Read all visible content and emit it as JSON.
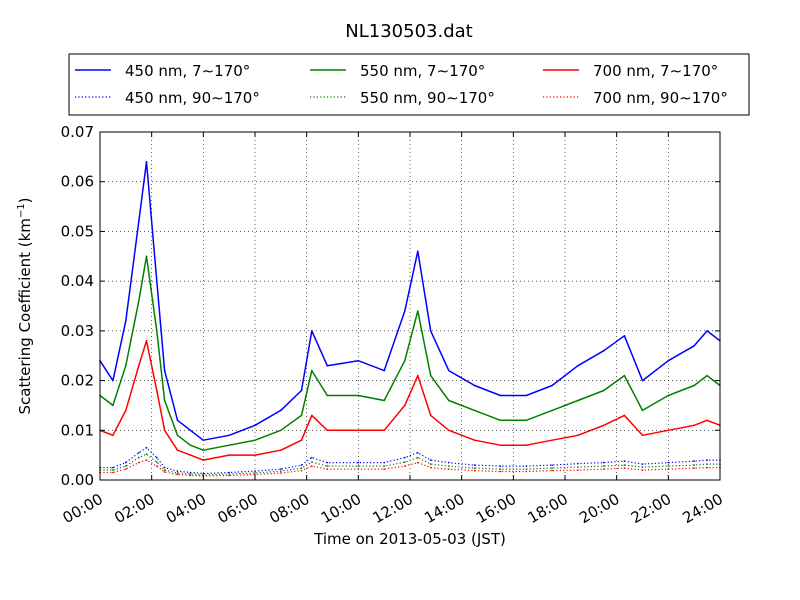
{
  "chart_data": {
    "type": "line",
    "title": "NL130503.dat",
    "xlabel": "Time on 2013-05-03 (JST)",
    "ylabel": "Scattering Coefficient (km",
    "ylabel_superscript": "−1",
    "ylabel_close": ")",
    "x_unit": "hours",
    "xlim": [
      0,
      24
    ],
    "ylim": [
      0,
      0.07
    ],
    "x_tick_values": [
      0,
      2,
      4,
      6,
      8,
      10,
      12,
      14,
      16,
      18,
      20,
      22,
      24
    ],
    "x_tick_labels": [
      "00:00",
      "02:00",
      "04:00",
      "06:00",
      "08:00",
      "10:00",
      "12:00",
      "14:00",
      "16:00",
      "18:00",
      "20:00",
      "22:00",
      "24:00"
    ],
    "y_tick_values": [
      0,
      0.01,
      0.02,
      0.03,
      0.04,
      0.05,
      0.06,
      0.07
    ],
    "y_tick_labels": [
      "0.00",
      "0.01",
      "0.02",
      "0.03",
      "0.04",
      "0.05",
      "0.06",
      "0.07"
    ],
    "grid": true,
    "legend_position": "top, above plot, 3 columns",
    "x": [
      0,
      0.5,
      1.0,
      1.5,
      1.8,
      2.2,
      2.5,
      3.0,
      3.5,
      4.0,
      5.0,
      6.0,
      7.0,
      7.8,
      8.2,
      8.8,
      10.0,
      11.0,
      11.8,
      12.3,
      12.8,
      13.5,
      14.5,
      15.5,
      16.5,
      17.5,
      18.5,
      19.5,
      20.3,
      21.0,
      22.0,
      23.0,
      23.5,
      24.0
    ],
    "series": [
      {
        "name": "450 nm, 7∼170°",
        "color": "#0000ff",
        "style": "solid",
        "values": [
          0.024,
          0.02,
          0.032,
          0.052,
          0.064,
          0.04,
          0.022,
          0.012,
          0.01,
          0.008,
          0.009,
          0.011,
          0.014,
          0.018,
          0.03,
          0.023,
          0.024,
          0.022,
          0.034,
          0.046,
          0.03,
          0.022,
          0.019,
          0.017,
          0.017,
          0.019,
          0.023,
          0.026,
          0.029,
          0.02,
          0.024,
          0.027,
          0.03,
          0.028
        ]
      },
      {
        "name": "550 nm, 7∼170°",
        "color": "#008000",
        "style": "solid",
        "values": [
          0.017,
          0.015,
          0.023,
          0.036,
          0.045,
          0.03,
          0.016,
          0.009,
          0.007,
          0.006,
          0.007,
          0.008,
          0.01,
          0.013,
          0.022,
          0.017,
          0.017,
          0.016,
          0.024,
          0.034,
          0.021,
          0.016,
          0.014,
          0.012,
          0.012,
          0.014,
          0.016,
          0.018,
          0.021,
          0.014,
          0.017,
          0.019,
          0.021,
          0.019
        ]
      },
      {
        "name": "700 nm, 7∼170°",
        "color": "#ff0000",
        "style": "solid",
        "values": [
          0.01,
          0.009,
          0.014,
          0.023,
          0.028,
          0.018,
          0.01,
          0.006,
          0.005,
          0.004,
          0.005,
          0.005,
          0.006,
          0.008,
          0.013,
          0.01,
          0.01,
          0.01,
          0.015,
          0.021,
          0.013,
          0.01,
          0.008,
          0.007,
          0.007,
          0.008,
          0.009,
          0.011,
          0.013,
          0.009,
          0.01,
          0.011,
          0.012,
          0.011
        ]
      },
      {
        "name": "450 nm, 90∼170°",
        "color": "#0000ff",
        "style": "dotted",
        "values": [
          0.0025,
          0.0025,
          0.0035,
          0.0055,
          0.0065,
          0.0045,
          0.0025,
          0.0018,
          0.0015,
          0.0013,
          0.0015,
          0.0018,
          0.0022,
          0.003,
          0.0045,
          0.0035,
          0.0035,
          0.0035,
          0.0045,
          0.0055,
          0.004,
          0.0035,
          0.003,
          0.0028,
          0.0028,
          0.003,
          0.0033,
          0.0035,
          0.0038,
          0.0032,
          0.0035,
          0.0038,
          0.004,
          0.004
        ]
      },
      {
        "name": "550 nm, 90∼170°",
        "color": "#008000",
        "style": "dotted",
        "values": [
          0.002,
          0.002,
          0.0028,
          0.0045,
          0.0052,
          0.0036,
          0.002,
          0.0014,
          0.0012,
          0.001,
          0.0012,
          0.0014,
          0.0018,
          0.0024,
          0.0036,
          0.0028,
          0.0028,
          0.0028,
          0.0036,
          0.0045,
          0.0032,
          0.0028,
          0.0024,
          0.0022,
          0.0022,
          0.0024,
          0.0026,
          0.0028,
          0.003,
          0.0026,
          0.0028,
          0.003,
          0.0032,
          0.0032
        ]
      },
      {
        "name": "700 nm, 90∼170°",
        "color": "#ff0000",
        "style": "dotted",
        "values": [
          0.0015,
          0.0015,
          0.0022,
          0.0035,
          0.004,
          0.0028,
          0.0016,
          0.0011,
          0.0009,
          0.0008,
          0.0009,
          0.0011,
          0.0014,
          0.0019,
          0.0028,
          0.0022,
          0.0022,
          0.0022,
          0.0028,
          0.0035,
          0.0025,
          0.0022,
          0.0019,
          0.0017,
          0.0017,
          0.0019,
          0.002,
          0.0022,
          0.0024,
          0.002,
          0.0022,
          0.0024,
          0.0025,
          0.0025
        ]
      }
    ]
  }
}
